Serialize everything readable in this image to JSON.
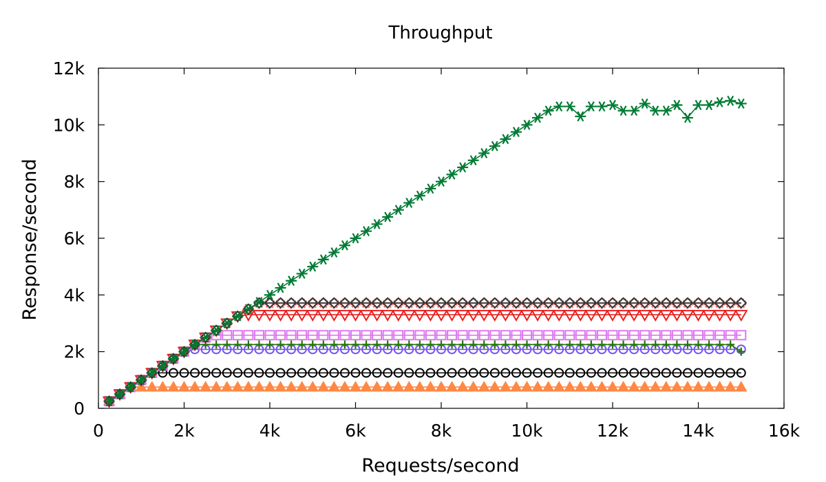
{
  "chart_data": {
    "type": "line",
    "title": "Throughput",
    "xlabel": "Requests/second",
    "ylabel": "Response/second",
    "xlim": [
      0,
      16000
    ],
    "ylim": [
      0,
      12000
    ],
    "xticks": [
      0,
      2000,
      4000,
      6000,
      8000,
      10000,
      12000,
      14000,
      16000
    ],
    "xtick_labels": [
      "0",
      "2k",
      "4k",
      "6k",
      "8k",
      "10k",
      "12k",
      "14k",
      "16k"
    ],
    "yticks": [
      0,
      2000,
      4000,
      6000,
      8000,
      10000,
      12000
    ],
    "ytick_labels": [
      "0",
      "2k",
      "4k",
      "6k",
      "8k",
      "10k",
      "12k"
    ],
    "grid": false,
    "legend": "none",
    "x_start": 250,
    "x_step": 250,
    "x_end": 15000,
    "series": [
      {
        "marker": "asterisk",
        "color": "#007a33",
        "saturation": 10650,
        "points": [
          [
            10750,
            10650
          ],
          [
            11000,
            10650
          ],
          [
            11250,
            10300
          ],
          [
            11500,
            10650
          ],
          [
            11750,
            10650
          ],
          [
            12000,
            10700
          ],
          [
            12250,
            10500
          ],
          [
            12500,
            10500
          ],
          [
            12750,
            10750
          ],
          [
            13000,
            10500
          ],
          [
            13250,
            10500
          ],
          [
            13500,
            10700
          ],
          [
            13750,
            10250
          ],
          [
            14000,
            10700
          ],
          [
            14250,
            10700
          ],
          [
            14500,
            10800
          ],
          [
            14750,
            10850
          ],
          [
            15000,
            10750
          ]
        ]
      },
      {
        "marker": "diamond",
        "color": "#333333",
        "saturation": 3720
      },
      {
        "marker": "circle-dot",
        "color": "#e87878",
        "saturation": 3700
      },
      {
        "marker": "triangle-down",
        "color": "#e82020",
        "saturation": 3300
      },
      {
        "marker": "square",
        "color": "#dd77ee",
        "saturation": 2580
      },
      {
        "marker": "plus",
        "color": "#227700",
        "saturation": 2250,
        "points": [
          [
            15000,
            2000
          ]
        ]
      },
      {
        "marker": "circle",
        "color": "#7755ee",
        "saturation": 2080
      },
      {
        "marker": "circle",
        "color": "#000000",
        "saturation": 1250
      },
      {
        "marker": "triangle-up",
        "color": "#ff8844",
        "saturation": 750
      }
    ]
  }
}
